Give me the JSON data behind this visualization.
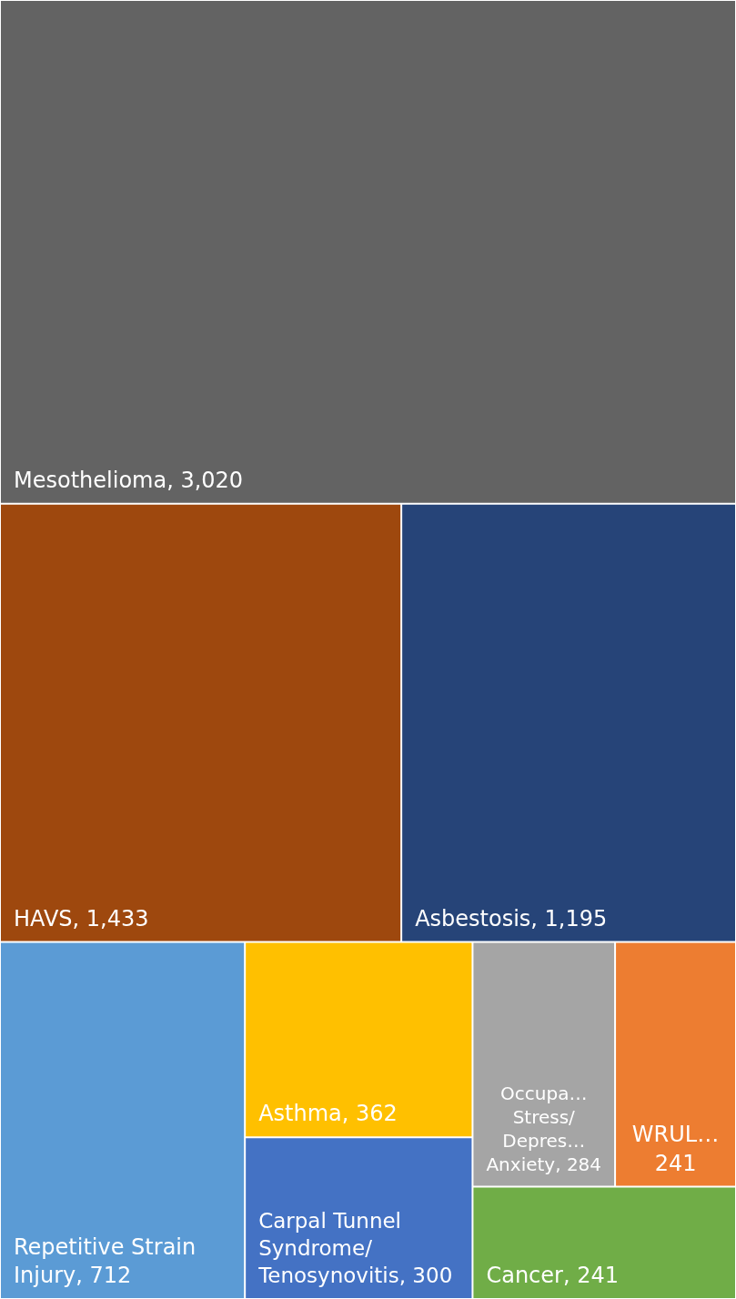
{
  "chart_data": {
    "type": "other",
    "categories": [
      "Mesothelioma",
      "HAVS",
      "Asbestosis",
      "Repetitive Strain Injury",
      "Asthma",
      "Carpal Tunnel Syndrome/ Tenosynovitis",
      "Occupa… Stress/ Depres… Anxiety",
      "WRUL…",
      "Cancer"
    ],
    "values": [
      3020,
      1433,
      1195,
      712,
      362,
      300,
      284,
      241,
      241
    ],
    "value_labels": [
      ", 3,020",
      ", 1,433",
      ", 1,195",
      ", 712",
      ", 362",
      ", 300",
      ", 284",
      "241",
      ", 241"
    ],
    "colors": [
      "#636363",
      "#9e480e",
      "#264478",
      "#5b9bd5",
      "#ffc000",
      "#4472c4",
      "#a5a5a5",
      "#ed7d31",
      "#70ad47"
    ],
    "data_labels": false
  }
}
